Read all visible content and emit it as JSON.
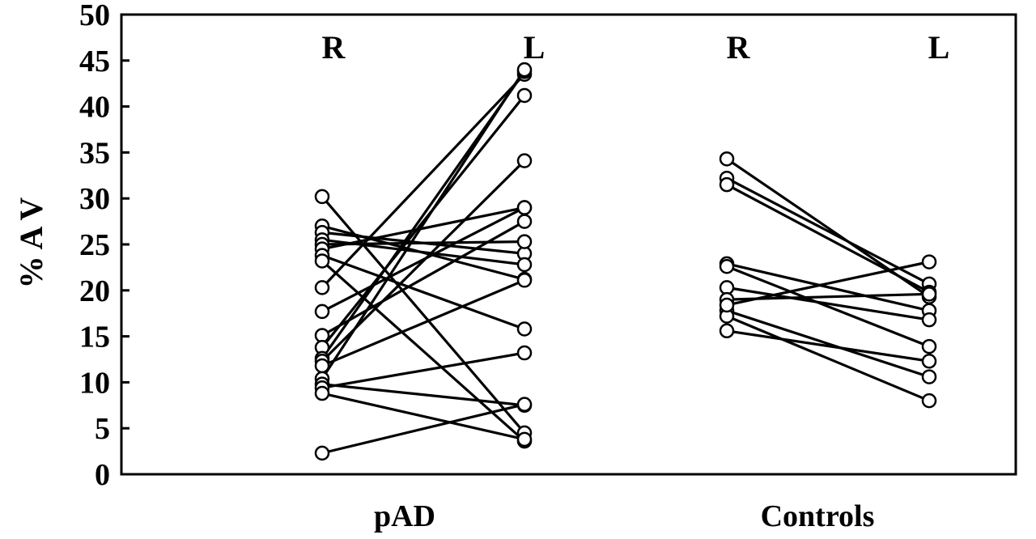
{
  "chart_data": {
    "type": "line",
    "ylabel": "% A V",
    "ylim": [
      0,
      50
    ],
    "yticks": [
      0,
      5,
      10,
      15,
      20,
      25,
      30,
      35,
      40,
      45,
      50
    ],
    "grid": false,
    "groups": [
      {
        "label": "pAD",
        "side_labels": [
          "R",
          "L"
        ],
        "pairs": [
          [
            30.2,
            4.5
          ],
          [
            27.0,
            21.2
          ],
          [
            26.3,
            24.0
          ],
          [
            25.5,
            22.8
          ],
          [
            25.0,
            25.3
          ],
          [
            24.5,
            29.0
          ],
          [
            23.8,
            15.8
          ],
          [
            23.2,
            3.6
          ],
          [
            20.3,
            43.5
          ],
          [
            17.7,
            29.0
          ],
          [
            15.1,
            27.5
          ],
          [
            13.8,
            41.2
          ],
          [
            12.6,
            43.8
          ],
          [
            12.3,
            34.1
          ],
          [
            11.8,
            21.1
          ],
          [
            10.4,
            44.0
          ],
          [
            9.8,
            7.5
          ],
          [
            9.4,
            13.2
          ],
          [
            8.8,
            3.8
          ],
          [
            2.3,
            7.6
          ]
        ]
      },
      {
        "label": "Controls",
        "side_labels": [
          "R",
          "L"
        ],
        "pairs": [
          [
            34.3,
            19.3
          ],
          [
            32.2,
            20.7
          ],
          [
            31.5,
            19.8
          ],
          [
            22.9,
            17.8
          ],
          [
            22.6,
            13.9
          ],
          [
            20.3,
            16.8
          ],
          [
            19.0,
            19.6
          ],
          [
            17.8,
            10.6
          ],
          [
            17.2,
            8.0
          ],
          [
            15.6,
            12.3
          ],
          [
            18.4,
            23.1
          ]
        ]
      }
    ]
  }
}
